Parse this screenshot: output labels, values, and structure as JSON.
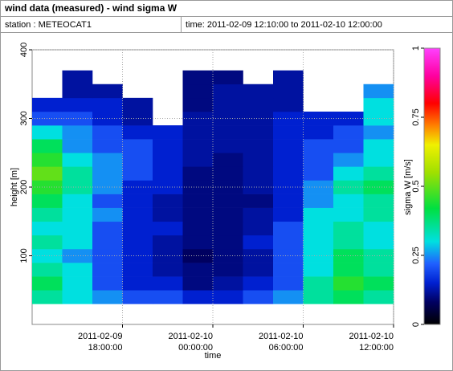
{
  "header": {
    "title": "wind data (measured) - wind sigma W",
    "station": "station : METEOCAT1",
    "time": "time: 2011-02-09 12:10:00 to 2011-02-10 12:00:00"
  },
  "chart_data": {
    "type": "heatmap",
    "xlabel": "time",
    "ylabel": "height [m]",
    "zlabel": "sigma W [m/s]",
    "xlim": [
      "2011-02-09 12:00:00",
      "2011-02-10 12:00:00"
    ],
    "xticks": [
      "2011-02-09 18:00:00",
      "2011-02-10 00:00:00",
      "2011-02-10 06:00:00",
      "2011-02-10 12:00:00"
    ],
    "ylim": [
      0,
      400
    ],
    "yticks": [
      100,
      200,
      300,
      400
    ],
    "zlim": [
      0,
      1
    ],
    "zticks": [
      0,
      0.25,
      0.5,
      0.75,
      1
    ],
    "grid": true,
    "colormap": [
      [
        0,
        "#000000"
      ],
      [
        0.08,
        "#000060"
      ],
      [
        0.15,
        "#0020d0"
      ],
      [
        0.22,
        "#2060ff"
      ],
      [
        0.3,
        "#00e0e0"
      ],
      [
        0.42,
        "#00e040"
      ],
      [
        0.55,
        "#a0e000"
      ],
      [
        0.65,
        "#f0f000"
      ],
      [
        0.72,
        "#ff8000"
      ],
      [
        0.8,
        "#ff0000"
      ],
      [
        0.9,
        "#ff00a0"
      ],
      [
        1,
        "#ff40ff"
      ]
    ],
    "x": [
      "2011-02-09 13:00:00",
      "2011-02-09 15:00:00",
      "2011-02-09 17:00:00",
      "2011-02-09 19:00:00",
      "2011-02-09 21:00:00",
      "2011-02-09 23:00:00",
      "2011-02-10 01:00:00",
      "2011-02-10 03:00:00",
      "2011-02-10 05:00:00",
      "2011-02-10 07:00:00",
      "2011-02-10 09:00:00",
      "2011-02-10 11:00:00"
    ],
    "y": [
      40,
      60,
      80,
      100,
      120,
      140,
      160,
      180,
      200,
      220,
      240,
      260,
      280,
      300,
      320,
      340,
      360
    ],
    "z": [
      [
        0.35,
        0.3,
        0.25,
        0.2,
        0.2,
        0.15,
        0.15,
        0.2,
        0.25,
        0.35,
        0.4,
        0.35
      ],
      [
        0.4,
        0.3,
        0.2,
        0.15,
        0.15,
        0.1,
        0.12,
        0.15,
        0.2,
        0.35,
        0.45,
        0.4
      ],
      [
        0.35,
        0.3,
        0.2,
        0.15,
        0.12,
        0.1,
        0.1,
        0.12,
        0.2,
        0.3,
        0.4,
        0.35
      ],
      [
        0.3,
        0.25,
        0.2,
        0.15,
        0.12,
        0.08,
        0.1,
        0.12,
        0.2,
        0.3,
        0.4,
        0.35
      ],
      [
        0.35,
        0.3,
        0.2,
        0.15,
        0.12,
        0.1,
        0.1,
        0.15,
        0.2,
        0.3,
        0.35,
        0.3
      ],
      [
        0.3,
        0.3,
        0.2,
        0.15,
        0.15,
        0.1,
        0.1,
        0.12,
        0.2,
        0.3,
        0.35,
        0.3
      ],
      [
        0.35,
        0.3,
        0.25,
        0.15,
        0.12,
        0.1,
        0.1,
        0.12,
        0.15,
        0.3,
        0.3,
        0.35
      ],
      [
        0.4,
        0.3,
        0.2,
        0.15,
        0.12,
        0.1,
        0.1,
        0.1,
        0.15,
        0.25,
        0.3,
        0.35
      ],
      [
        0.45,
        0.35,
        0.25,
        0.15,
        0.15,
        0.1,
        0.1,
        0.12,
        0.15,
        0.25,
        0.35,
        0.4
      ],
      [
        0.5,
        0.35,
        0.25,
        0.2,
        0.15,
        0.1,
        0.1,
        0.12,
        0.15,
        0.2,
        0.3,
        0.35
      ],
      [
        0.45,
        0.3,
        0.25,
        0.2,
        0.15,
        0.12,
        0.1,
        0.12,
        0.15,
        0.2,
        0.25,
        0.3
      ],
      [
        0.4,
        0.25,
        0.2,
        0.2,
        0.15,
        0.12,
        0.12,
        0.12,
        0.15,
        0.2,
        0.2,
        0.3
      ],
      [
        0.3,
        0.25,
        0.2,
        0.15,
        0.15,
        0.12,
        0.12,
        0.12,
        0.15,
        0.15,
        0.2,
        0.25
      ],
      [
        0.2,
        0.2,
        0.15,
        0.12,
        null,
        0.12,
        0.12,
        0.12,
        0.15,
        0.15,
        0.15,
        0.3
      ],
      [
        0.15,
        0.15,
        0.15,
        0.12,
        null,
        0.1,
        0.12,
        0.12,
        0.12,
        null,
        null,
        0.3
      ],
      [
        null,
        0.12,
        0.12,
        null,
        null,
        0.1,
        0.12,
        0.12,
        0.12,
        null,
        null,
        0.25
      ],
      [
        null,
        0.12,
        null,
        null,
        null,
        0.1,
        0.1,
        null,
        0.12,
        null,
        null,
        null
      ]
    ]
  }
}
